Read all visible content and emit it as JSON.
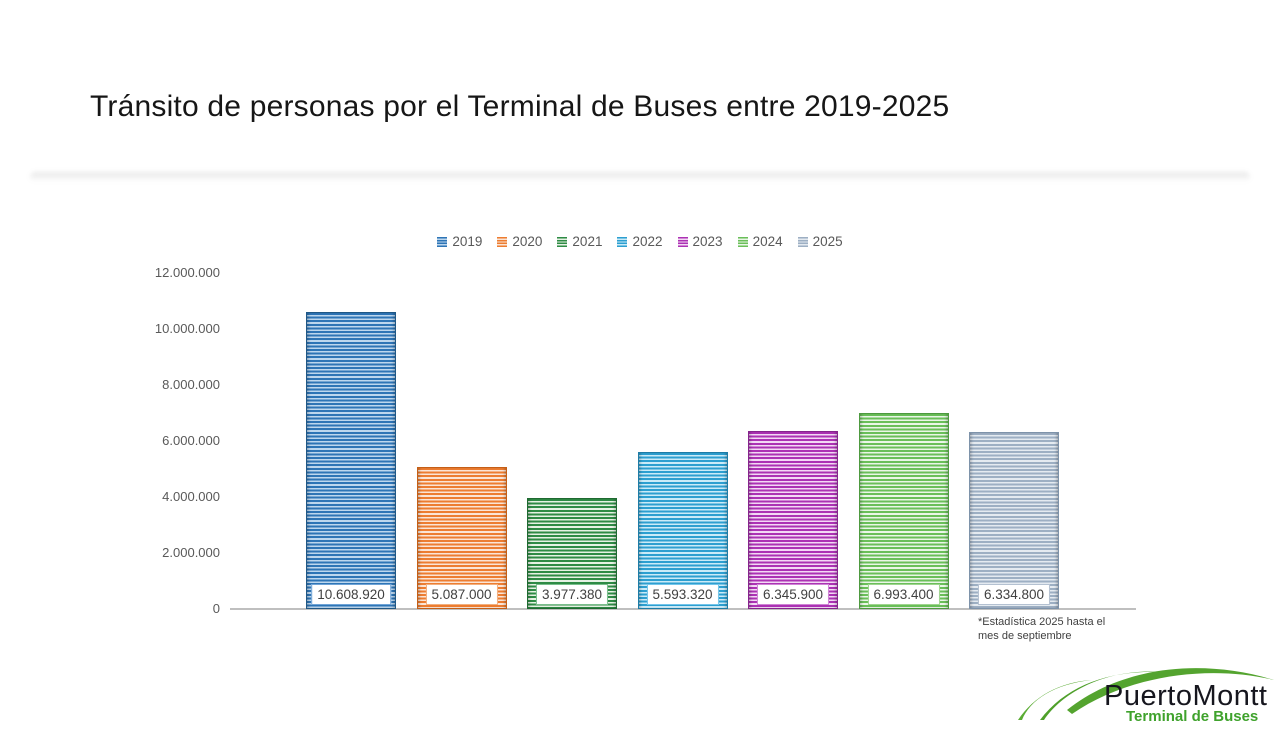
{
  "slide": {
    "title": "Tránsito de personas por el Terminal de Buses entre 2019-2025",
    "footnote_line1": "*Estadística 2025 hasta el",
    "footnote_line2": "mes de septiembre",
    "logo": {
      "name": "PuertoMontt",
      "subtitle": "Terminal de Buses",
      "text_color": "#16161e",
      "green": "#54A42F"
    }
  },
  "chart_data": {
    "type": "bar",
    "title": "Tránsito de personas por el Terminal de Buses entre 2019-2025",
    "categories": [
      "2019",
      "2020",
      "2021",
      "2022",
      "2023",
      "2024",
      "2025"
    ],
    "values": [
      10608920,
      5087000,
      3977380,
      5593320,
      6345900,
      6993400,
      6334800
    ],
    "data_labels": [
      "10.608.920",
      "5.087.000",
      "3.977.380",
      "5.593.320",
      "6.345.900",
      "6.993.400",
      "6.334.800"
    ],
    "ylim": [
      0,
      12000000
    ],
    "ytick_step": 2000000,
    "ytick_labels": [
      "0",
      "2.000.000",
      "4.000.000",
      "6.000.000",
      "8.000.000",
      "10.000.000",
      "12.000.000"
    ],
    "grid": false,
    "legend_position": "top-center",
    "bar_fill_style": "horizontal-stripes",
    "series_colors": [
      "#2E75B6",
      "#ED7D31",
      "#2E8B45",
      "#2D9FD0",
      "#AC32B4",
      "#6ABF59",
      "#9DAFC3"
    ],
    "series_light_colors": [
      "#BDD7EE",
      "#FBE5D6",
      "#E6F2E4",
      "#CBEBF8",
      "#F3D9F5",
      "#EAF6E7",
      "#E4EAF0"
    ],
    "series_edge_colors": [
      "#205886",
      "#C55F16",
      "#1F6A31",
      "#1E7CA6",
      "#86258C",
      "#4E9A40",
      "#7E93AA"
    ],
    "label_border_colors": [
      "#6FA3D6",
      "#F2AF7E",
      "#79BE8C",
      "#74C5EA",
      "#CE84D4",
      "#9FD48F",
      "#B4C1D1"
    ],
    "axis_color": "#BFBFBF",
    "tick_text_color": "#595959",
    "legend_text_color": "#595959",
    "data_label_text_color": "#404040"
  }
}
